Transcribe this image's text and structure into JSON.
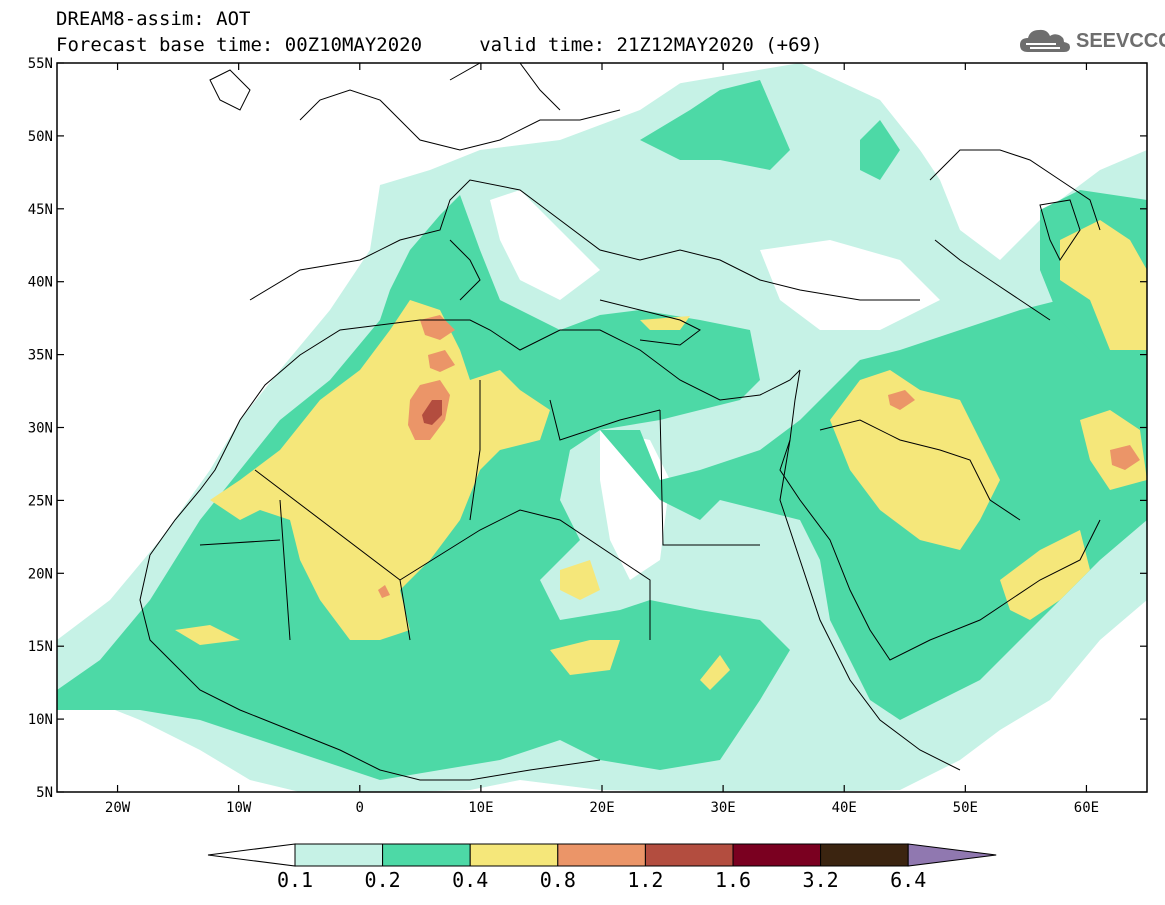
{
  "title": {
    "line1": "DREAM8-assim: AOT",
    "line2": "Forecast base time: 00Z10MAY2020     valid time: 21Z12MAY2020 (+69)"
  },
  "logo": {
    "text": "SEEVCCC",
    "icon": "cloud-icon"
  },
  "map": {
    "lon_range": [
      -25,
      65
    ],
    "lat_range": [
      5,
      55
    ],
    "lon_ticks": [
      {
        "value": -20,
        "label": "20W"
      },
      {
        "value": -10,
        "label": "10W"
      },
      {
        "value": 0,
        "label": "0"
      },
      {
        "value": 10,
        "label": "10E"
      },
      {
        "value": 20,
        "label": "20E"
      },
      {
        "value": 30,
        "label": "30E"
      },
      {
        "value": 40,
        "label": "40E"
      },
      {
        "value": 50,
        "label": "50E"
      },
      {
        "value": 60,
        "label": "60E"
      }
    ],
    "lat_ticks": [
      {
        "value": 55,
        "label": "55N"
      },
      {
        "value": 50,
        "label": "50N"
      },
      {
        "value": 45,
        "label": "45N"
      },
      {
        "value": 40,
        "label": "40N"
      },
      {
        "value": 35,
        "label": "35N"
      },
      {
        "value": 30,
        "label": "30N"
      },
      {
        "value": 25,
        "label": "25N"
      },
      {
        "value": 20,
        "label": "20N"
      },
      {
        "value": 15,
        "label": "15N"
      },
      {
        "value": 10,
        "label": "10N"
      },
      {
        "value": 5,
        "label": "5N"
      }
    ]
  },
  "colorbar": {
    "boundaries": [
      "0.1",
      "0.2",
      "0.4",
      "0.8",
      "1.2",
      "1.6",
      "3.2",
      "6.4"
    ],
    "colors": [
      "#c6f2e6",
      "#4dd9a6",
      "#f5e77a",
      "#eb9568",
      "#b34d3f",
      "#7a0020",
      "#3b2410",
      "#9078b0"
    ],
    "under_color": "#ffffff"
  }
}
